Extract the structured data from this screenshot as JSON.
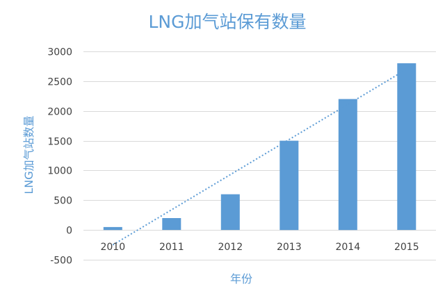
{
  "chart_data": {
    "type": "bar",
    "title": "LNG加气站保有数量",
    "xlabel": "年份",
    "ylabel": "LNG加气站数量",
    "categories": [
      "2010",
      "2011",
      "2012",
      "2013",
      "2014",
      "2015"
    ],
    "series": [
      {
        "values": [
          50,
          200,
          600,
          1500,
          2200,
          2800
        ],
        "color": "#5b9bd5"
      }
    ],
    "trendline": {
      "type": "linear",
      "style": "dotted",
      "color": "#5b9bd5"
    },
    "ylim": [
      -500,
      3000
    ],
    "yticks": [
      -500,
      0,
      500,
      1000,
      1500,
      2000,
      2500,
      3000
    ],
    "grid": true,
    "legend": "none"
  }
}
